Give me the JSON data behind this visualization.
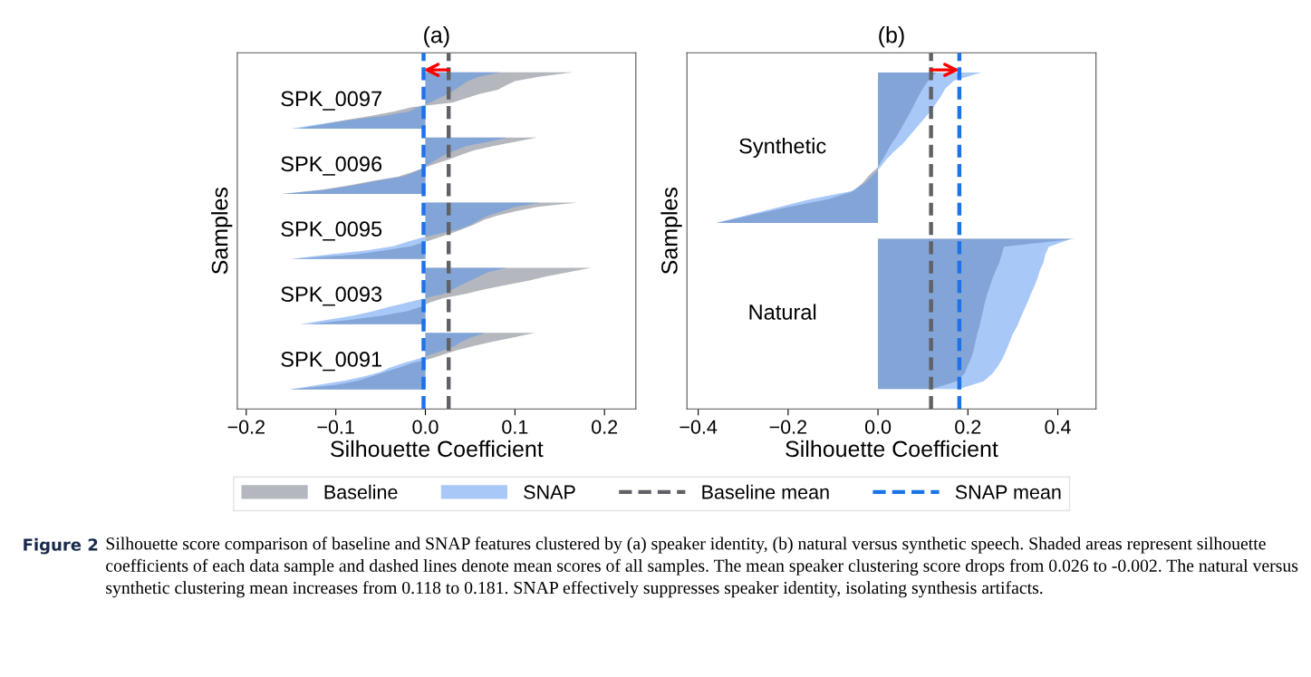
{
  "chart_data": [
    {
      "type": "area",
      "orientation": "horizontal",
      "title": "(a)",
      "xlabel": "Silhouette Coefficient",
      "ylabel": "Samples",
      "tick_labels": "x",
      "legend": "bottom",
      "categories": [
        null,
        null,
        null,
        null,
        null,
        null,
        null,
        null,
        null,
        null,
        null,
        null,
        null,
        null,
        null,
        null,
        null,
        null,
        null,
        null,
        null,
        null,
        null,
        null,
        null,
        null,
        null,
        null,
        null,
        null,
        null,
        null,
        null,
        null,
        null,
        null,
        null,
        null,
        null,
        null,
        null,
        null,
        null,
        null,
        null,
        null,
        null,
        null,
        null,
        null,
        null,
        null,
        null,
        null,
        null,
        null,
        null,
        null,
        null,
        null,
        null,
        null,
        null,
        null,
        null,
        null,
        null,
        null,
        null,
        null,
        null,
        null,
        null,
        null,
        null,
        null,
        null,
        null,
        null,
        null,
        null,
        null
      ],
      "xlim": [
        -0.21,
        0.235
      ],
      "xticks": [
        {
          "value": -0.2,
          "label": "−0.2"
        },
        {
          "value": -0.1,
          "label": "−0.1"
        },
        {
          "value": 0,
          "label": "0.0"
        },
        {
          "value": 0.1,
          "label": "0.1"
        },
        {
          "value": 0.2,
          "label": "0.2"
        }
      ],
      "series": [
        {
          "name": "Baseline",
          "color": "#b4b7bd",
          "values": [
            null,
            null,
            null,
            null,
            0.165,
            0.128,
            0.1,
            0.09,
            0.081,
            0.06,
            0.045,
            0.03,
            -0.015,
            -0.035,
            -0.06,
            -0.09,
            -0.115,
            -0.142,
            null,
            0.125,
            0.1,
            0.075,
            0.054,
            0.04,
            0.027,
            0.012,
            -0.002,
            -0.015,
            -0.03,
            -0.058,
            -0.085,
            -0.115,
            -0.16,
            null,
            0.17,
            0.125,
            0.1,
            0.08,
            0.065,
            0.055,
            0.043,
            0.03,
            0.015,
            0.0,
            -0.015,
            -0.045,
            -0.08,
            -0.15,
            null,
            0.185,
            0.16,
            0.135,
            0.115,
            0.09,
            0.065,
            0.045,
            0.02,
            0.005,
            -0.005,
            -0.02,
            -0.048,
            -0.085,
            -0.13,
            null,
            0.122,
            0.1,
            0.075,
            0.054,
            0.035,
            0.02,
            0.005,
            -0.015,
            -0.03,
            -0.045,
            -0.06,
            -0.075,
            -0.1,
            -0.152,
            null,
            null,
            null,
            null
          ]
        },
        {
          "name": "SNAP",
          "color": "#5191f1",
          "values": [
            null,
            null,
            null,
            null,
            0.084,
            0.06,
            0.047,
            0.04,
            0.033,
            0.025,
            0.015,
            0.005,
            -0.008,
            -0.018,
            -0.045,
            -0.085,
            -0.12,
            -0.15,
            null,
            0.091,
            0.07,
            0.045,
            0.033,
            0.022,
            0.013,
            0.005,
            -0.002,
            -0.012,
            -0.025,
            -0.054,
            -0.08,
            -0.11,
            -0.16,
            null,
            0.128,
            0.1,
            0.085,
            0.07,
            0.06,
            0.052,
            0.04,
            0.02,
            -0.003,
            -0.02,
            -0.035,
            -0.065,
            -0.11,
            -0.15,
            null,
            0.091,
            0.07,
            0.06,
            0.05,
            0.04,
            0.03,
            0.02,
            0.0,
            -0.02,
            -0.04,
            -0.058,
            -0.08,
            -0.11,
            -0.14,
            null,
            0.067,
            0.052,
            0.04,
            0.033,
            0.02,
            0.006,
            -0.008,
            -0.025,
            -0.04,
            -0.05,
            -0.068,
            -0.09,
            -0.12,
            -0.152,
            null,
            null,
            null,
            null
          ]
        }
      ],
      "ref_lines": [
        {
          "axis": "x",
          "value": 0.026,
          "label": "Baseline mean",
          "color": "#5f6166",
          "line_style": "dashed"
        },
        {
          "axis": "x",
          "value": -0.002,
          "label": "SNAP mean",
          "color": "#1a73e8",
          "line_style": "dashed"
        }
      ],
      "annotations": [
        "SPK_0097",
        "SPK_0096",
        "SPK_0095",
        "SPK_0093",
        "SPK_0091"
      ]
    },
    {
      "type": "area",
      "orientation": "horizontal",
      "title": "(b)",
      "xlabel": "Silhouette Coefficient",
      "ylabel": "Samples",
      "tick_labels": "x",
      "categories": [
        null,
        null,
        null,
        null,
        null,
        null,
        null,
        null,
        null,
        null,
        null,
        null,
        null,
        null,
        null,
        null,
        null,
        null,
        null,
        null,
        null,
        null,
        null,
        null,
        null,
        null,
        null,
        null,
        null,
        null,
        null,
        null,
        null,
        null,
        null,
        null,
        null,
        null,
        null,
        null,
        null,
        null,
        null,
        null,
        null
      ],
      "xlim": [
        -0.425,
        0.485
      ],
      "xticks": [
        {
          "value": -0.4,
          "label": "−0.4"
        },
        {
          "value": -0.2,
          "label": "−0.2"
        },
        {
          "value": 0,
          "label": "0.0"
        },
        {
          "value": 0.2,
          "label": "0.2"
        },
        {
          "value": 0.4,
          "label": "0.4"
        }
      ],
      "series": [
        {
          "color": "#b4b7bd",
          "values": [
            null,
            null,
            0.13,
            0.112,
            0.1,
            0.09,
            0.081,
            0.072,
            0.062,
            0.052,
            0.042,
            0.03,
            0.02,
            0.01,
            -0.001,
            -0.02,
            -0.035,
            -0.055,
            -0.11,
            -0.2,
            -0.28,
            -0.36,
            null,
            0.44,
            0.28,
            0.275,
            0.27,
            0.262,
            0.255,
            0.249,
            0.243,
            0.238,
            0.234,
            0.23,
            0.226,
            0.221,
            0.217,
            0.213,
            0.208,
            0.2,
            0.193,
            0.175,
            0.12,
            null,
            null
          ]
        },
        {
          "color": "#5191f1",
          "values": [
            null,
            null,
            0.23,
            0.17,
            0.15,
            0.14,
            0.128,
            0.115,
            0.1,
            0.085,
            0.07,
            0.055,
            0.035,
            0.018,
            0.005,
            -0.012,
            -0.03,
            -0.06,
            -0.15,
            -0.22,
            -0.29,
            -0.36,
            null,
            0.43,
            0.38,
            0.372,
            0.368,
            0.36,
            0.355,
            0.348,
            0.34,
            0.333,
            0.325,
            0.317,
            0.31,
            0.3,
            0.293,
            0.286,
            0.278,
            0.268,
            0.255,
            0.235,
            0.18,
            null,
            null
          ]
        }
      ],
      "ref_lines": [
        {
          "axis": "x",
          "value": 0.118,
          "color": "#5f6166",
          "line_style": "dashed"
        },
        {
          "axis": "x",
          "value": 0.181,
          "color": "#1a73e8",
          "line_style": "dashed"
        }
      ],
      "annotations": [
        "Synthetic",
        "Natural"
      ]
    },
    {
      "type": "other",
      "annotations": [
        "Figure 2",
        "Silhouette score comparison of baseline and SNAP features clustered by (a) speaker identity, (b) natural versus synthetic speech. Shaded areas represent silhouette coefficients of each data sample and dashed lines denote mean scores of all samples. The mean speaker clustering score drops from 0.026 to -0.002. The natural versus synthetic clustering mean increases from 0.118 to 0.181. SNAP effectively suppresses speaker identity, isolating synthesis artifacts."
      ]
    }
  ]
}
